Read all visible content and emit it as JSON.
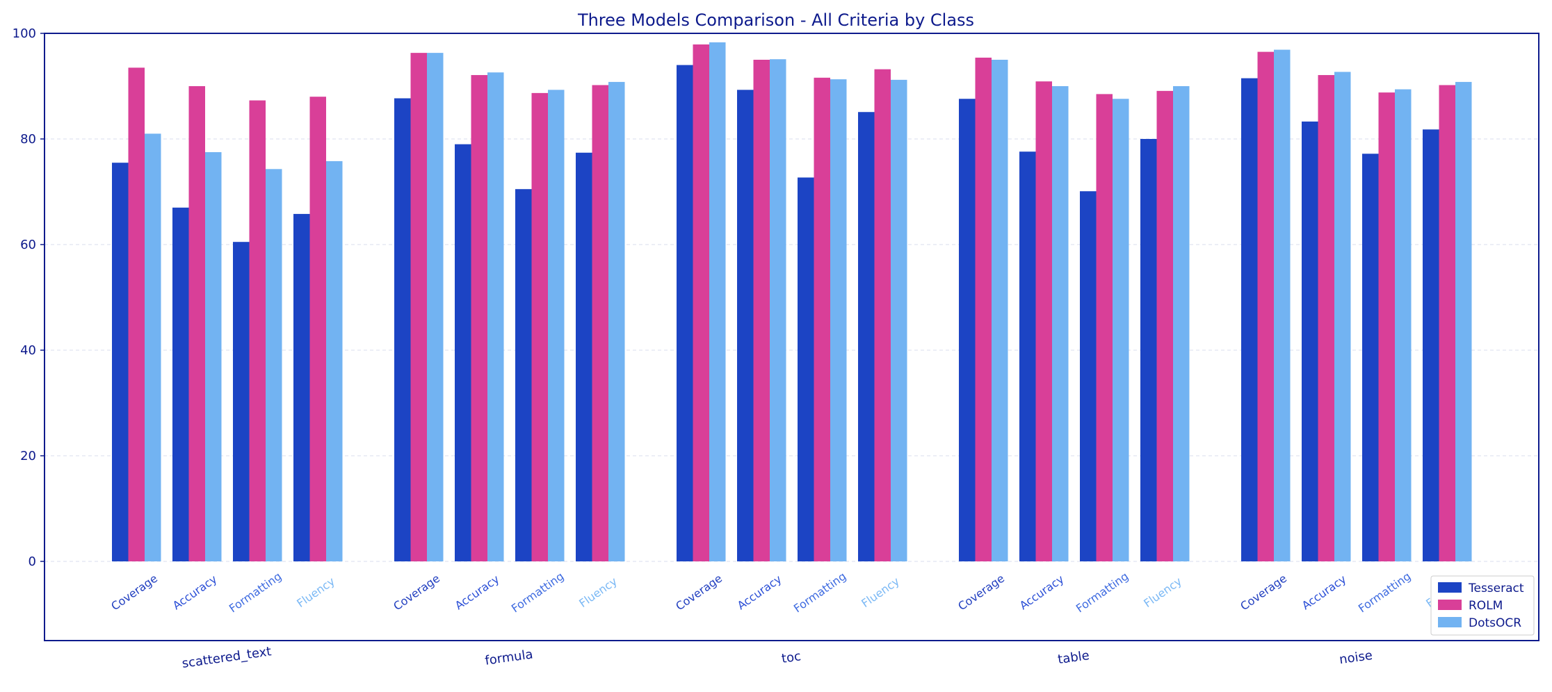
{
  "chart_data": {
    "type": "bar",
    "title": "Three Models Comparison - All Criteria by Class",
    "xlabel": "",
    "ylabel": "",
    "ylim": [
      -15,
      100
    ],
    "yticks": [
      "0",
      "20",
      "40",
      "60",
      "80",
      "100"
    ],
    "grid": true,
    "legend_position": "bottom-right",
    "criteria": [
      "Coverage",
      "Accuracy",
      "Formatting",
      "Fluency"
    ],
    "criteria_colors": [
      "#1f3dbf",
      "#2b4fd6",
      "#3d6ae0",
      "#7ab8f5"
    ],
    "classes": [
      "scattered_text",
      "formula",
      "toc",
      "table",
      "noise"
    ],
    "series": [
      {
        "name": "Tesseract",
        "color": "#1c44c4",
        "values": [
          [
            75.5,
            67.0,
            60.5,
            65.8
          ],
          [
            87.7,
            79.0,
            70.5,
            77.4
          ],
          [
            94.0,
            89.3,
            72.7,
            85.1
          ],
          [
            87.6,
            77.6,
            70.1,
            80.0
          ],
          [
            91.5,
            83.3,
            77.2,
            81.8
          ]
        ]
      },
      {
        "name": "ROLM",
        "color": "#d93f98",
        "values": [
          [
            93.5,
            90.0,
            87.3,
            88.0
          ],
          [
            96.3,
            92.1,
            88.7,
            90.2
          ],
          [
            97.9,
            95.0,
            91.6,
            93.2
          ],
          [
            95.4,
            90.9,
            88.5,
            89.1
          ],
          [
            96.5,
            92.1,
            88.8,
            90.2
          ]
        ]
      },
      {
        "name": "DotsOCR",
        "color": "#72b3f2",
        "values": [
          [
            81.0,
            77.5,
            74.3,
            75.8
          ],
          [
            96.3,
            92.6,
            89.3,
            90.8
          ],
          [
            98.3,
            95.1,
            91.3,
            91.2
          ],
          [
            95.0,
            90.0,
            87.6,
            90.0
          ],
          [
            96.9,
            92.7,
            89.4,
            90.8
          ]
        ]
      }
    ]
  }
}
